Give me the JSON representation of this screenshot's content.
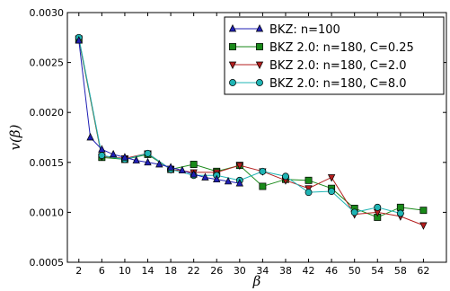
{
  "chart_data": {
    "type": "line",
    "xlabel": "β",
    "ylabel": "v(β)",
    "xlim": [
      0,
      66
    ],
    "ylim": [
      0.0005,
      0.003
    ],
    "xticks": [
      2,
      6,
      10,
      14,
      18,
      22,
      26,
      30,
      34,
      38,
      42,
      46,
      50,
      54,
      58,
      62
    ],
    "yticks": [
      0.0005,
      0.001,
      0.0015,
      0.002,
      0.0025,
      0.003
    ],
    "ytick_labels": [
      "0.0005",
      "0.0010",
      "0.0015",
      "0.0020",
      "0.0025",
      "0.0030"
    ],
    "grid": false,
    "legend_position": "top-right",
    "series": [
      {
        "name": "BKZ: n=100",
        "color": "#1f1fb4",
        "marker": "triangle-up",
        "x": [
          2,
          4,
          6,
          8,
          10,
          12,
          14,
          16,
          18,
          20,
          22,
          24,
          26,
          28,
          30
        ],
        "y": [
          0.00272,
          0.00175,
          0.00163,
          0.00158,
          0.00155,
          0.00152,
          0.0015,
          0.00148,
          0.00145,
          0.00142,
          0.00138,
          0.00135,
          0.00133,
          0.00131,
          0.00129
        ]
      },
      {
        "name": "BKZ 2.0: n=180, C=0.25",
        "color": "#1a8a1a",
        "marker": "square",
        "x": [
          2,
          6,
          10,
          14,
          18,
          22,
          26,
          30,
          34,
          38,
          42,
          46,
          50,
          54,
          58,
          62
        ],
        "y": [
          0.00273,
          0.00155,
          0.00153,
          0.00158,
          0.00143,
          0.00148,
          0.00141,
          0.00147,
          0.00126,
          0.00133,
          0.00132,
          0.00124,
          0.00104,
          0.00095,
          0.00105,
          0.00102
        ]
      },
      {
        "name": "BKZ 2.0: n=180, C=2.0",
        "color": "#b41f1f",
        "marker": "triangle-down",
        "x": [
          2,
          6,
          10,
          14,
          18,
          22,
          26,
          30,
          34,
          38,
          42,
          46,
          50,
          54,
          58,
          62
        ],
        "y": [
          0.00274,
          0.00156,
          0.00154,
          0.00159,
          0.00143,
          0.0014,
          0.0014,
          0.00147,
          0.00141,
          0.00132,
          0.00124,
          0.00135,
          0.00098,
          0.001,
          0.00096,
          0.00087
        ]
      },
      {
        "name": "BKZ 2.0: n=180, C=8.0",
        "color": "#1fb4b4",
        "marker": "circle",
        "x": [
          2,
          6,
          10,
          14,
          18,
          22,
          26,
          30,
          34,
          38,
          42,
          46,
          50,
          54,
          58
        ],
        "y": [
          0.00275,
          0.00157,
          0.00153,
          0.00159,
          0.00143,
          0.00137,
          0.00137,
          0.00132,
          0.00141,
          0.00136,
          0.0012,
          0.00121,
          0.001,
          0.00105,
          0.00099
        ]
      }
    ]
  }
}
